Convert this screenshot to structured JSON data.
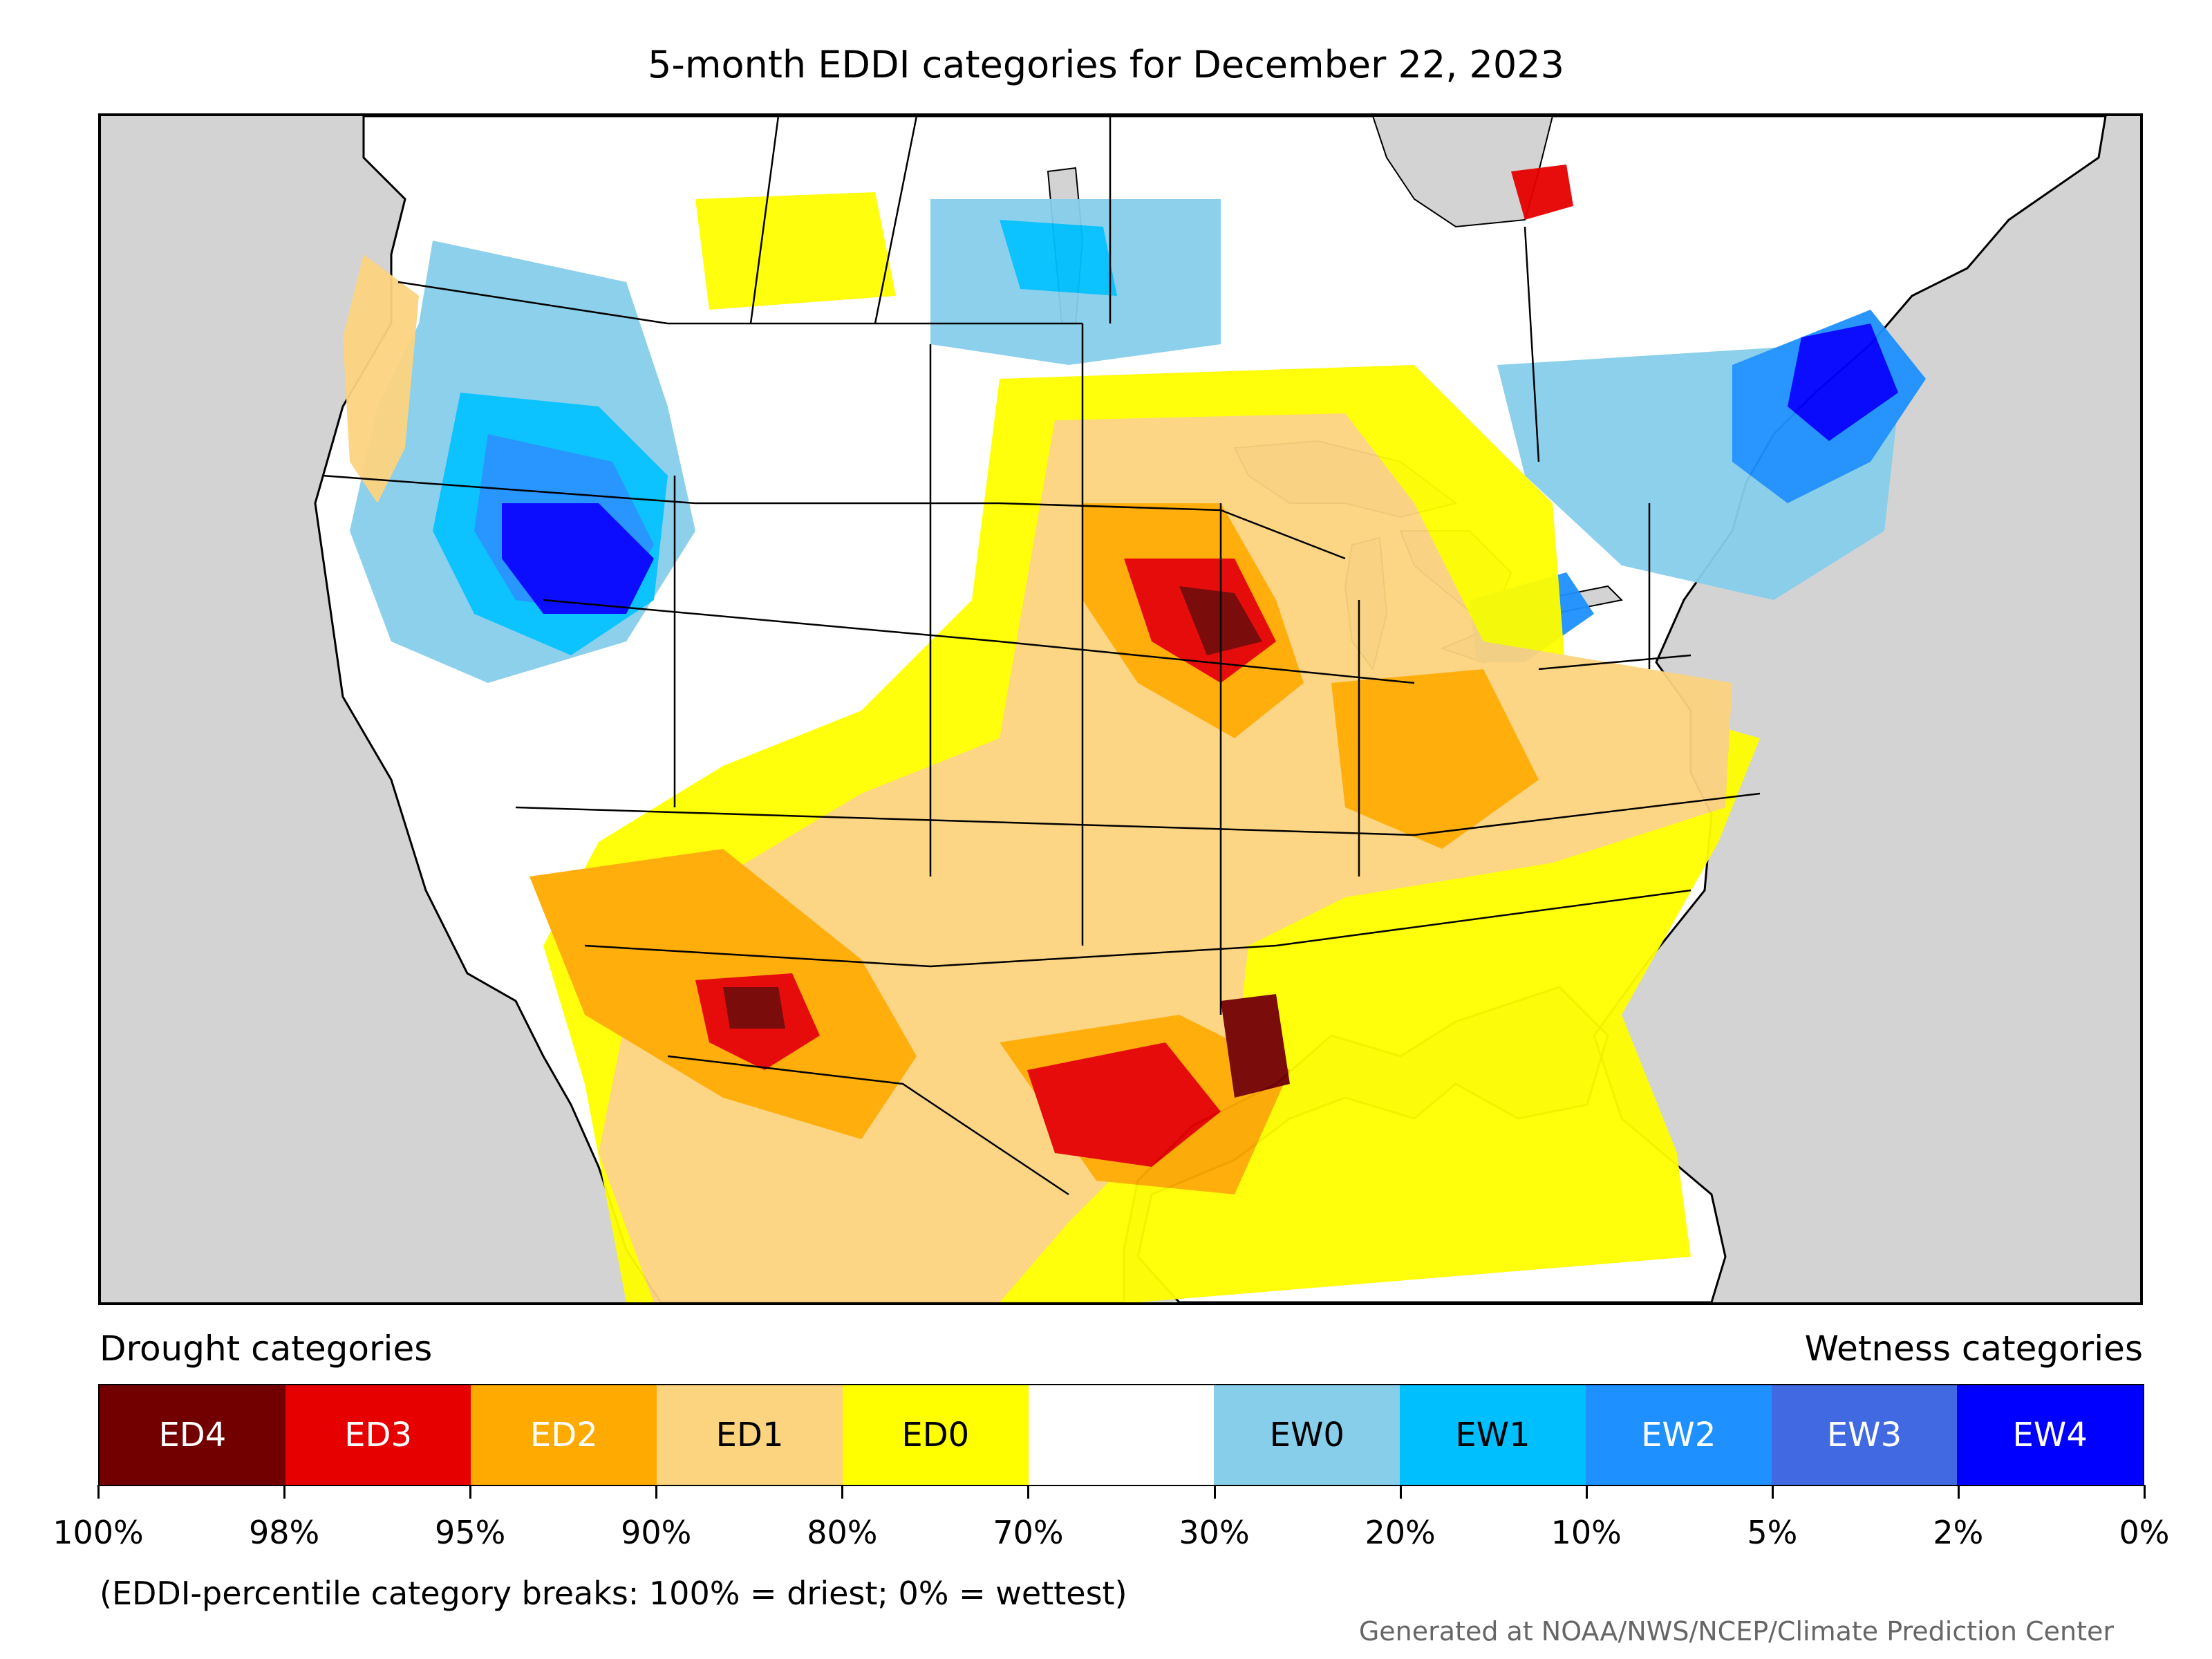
{
  "title": "5-month EDDI categories for December 22, 2023",
  "legend": {
    "drought_heading": "Drought categories",
    "wetness_heading": "Wetness categories",
    "categories": [
      {
        "label": "ED4",
        "color": "#730000",
        "text_color": "#ffffff"
      },
      {
        "label": "ED3",
        "color": "#e60000",
        "text_color": "#ffffff"
      },
      {
        "label": "ED2",
        "color": "#ffaa00",
        "text_color": "#ffffff"
      },
      {
        "label": "ED1",
        "color": "#fcd37f",
        "text_color": "#000000"
      },
      {
        "label": "ED0",
        "color": "#ffff00",
        "text_color": "#000000"
      },
      {
        "label": "",
        "color": "#ffffff",
        "text_color": "#000000"
      },
      {
        "label": "EW0",
        "color": "#87ceeb",
        "text_color": "#000000"
      },
      {
        "label": "EW1",
        "color": "#00bfff",
        "text_color": "#000000"
      },
      {
        "label": "EW2",
        "color": "#1e90ff",
        "text_color": "#ffffff"
      },
      {
        "label": "EW3",
        "color": "#4169e1",
        "text_color": "#ffffff"
      },
      {
        "label": "EW4",
        "color": "#0000ff",
        "text_color": "#ffffff"
      }
    ],
    "ticks": [
      "100%",
      "98%",
      "95%",
      "90%",
      "80%",
      "70%",
      "30%",
      "20%",
      "10%",
      "5%",
      "2%",
      "0%"
    ]
  },
  "note": "(EDDI-percentile category breaks: 100% = driest; 0% = wettest)",
  "credit": "Generated at NOAA/NWS/NCEP/Climate Prediction Center",
  "map_colors": {
    "ocean": "#d3d3d3",
    "land": "#ffffff",
    "border": "#000000"
  }
}
